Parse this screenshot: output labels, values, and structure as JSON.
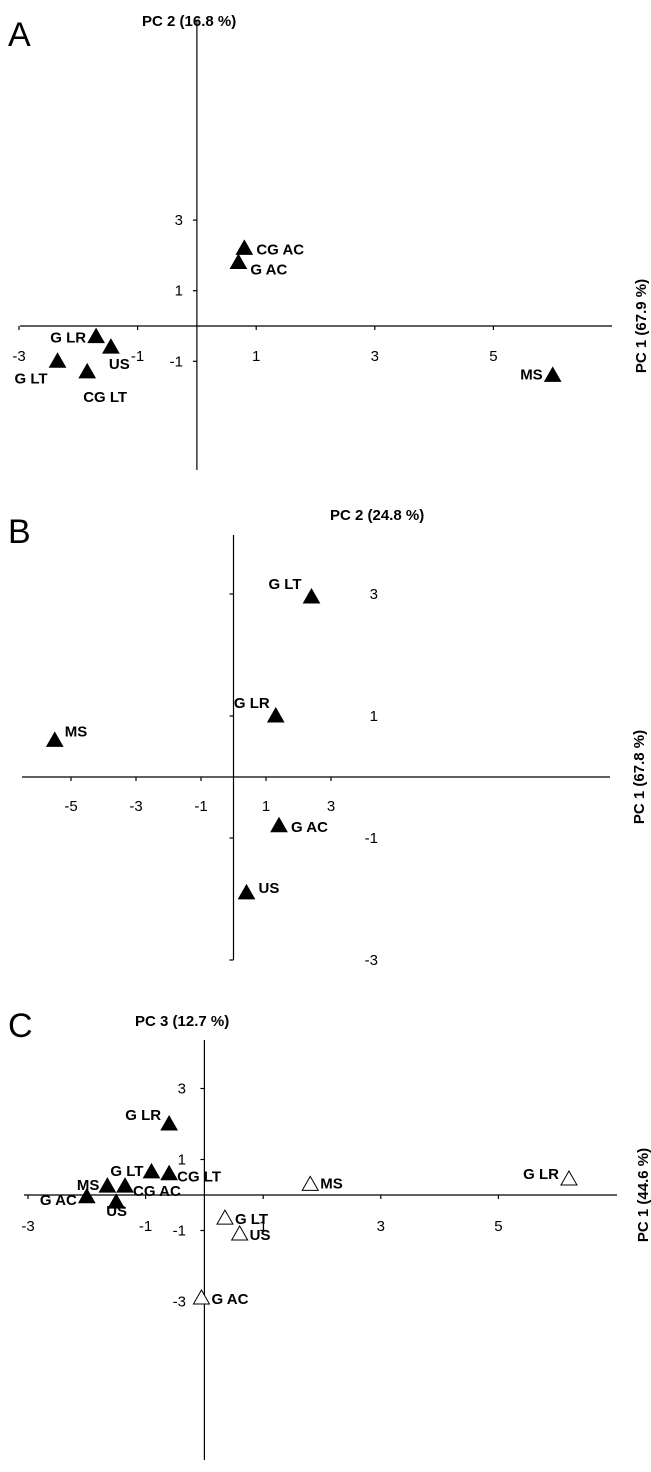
{
  "colors": {
    "filled_marker": "#000000",
    "open_marker": "#ffffff",
    "axis": "#000000"
  },
  "chart_data": [
    {
      "panel": "A",
      "type": "scatter",
      "xlabel": "PC 1 (67.9 %)",
      "ylabel": "PC 2 (16.8 %)",
      "xlim": [
        -3,
        7
      ],
      "ylim": [
        -2,
        4
      ],
      "xticks": [
        -3,
        -1,
        1,
        3,
        5
      ],
      "yticks": [
        -1,
        1,
        3
      ],
      "points": [
        {
          "label": "CG AC",
          "x": 0.8,
          "y": 2.2,
          "filled": true
        },
        {
          "label": "G AC",
          "x": 0.7,
          "y": 1.8,
          "filled": true
        },
        {
          "label": "G LR",
          "x": -1.7,
          "y": -0.3,
          "filled": true
        },
        {
          "label": "US",
          "x": -1.45,
          "y": -0.6,
          "filled": true
        },
        {
          "label": "G LT",
          "x": -2.35,
          "y": -1.0,
          "filled": true
        },
        {
          "label": "CG LT",
          "x": -1.85,
          "y": -1.3,
          "filled": true
        },
        {
          "label": "MS",
          "x": 6.0,
          "y": -1.4,
          "filled": true
        }
      ]
    },
    {
      "panel": "B",
      "type": "scatter",
      "xlabel": "PC 1 (67.8 %)",
      "ylabel": "PC 2 (24.8 %)",
      "xlim": [
        -6,
        3.8
      ],
      "ylim": [
        -3,
        4
      ],
      "xticks": [
        -5,
        -3,
        -1,
        1,
        3
      ],
      "yticks": [
        -3,
        -1,
        1,
        3
      ],
      "points": [
        {
          "label": "G LT",
          "x": 2.4,
          "y": 2.95,
          "filled": true
        },
        {
          "label": "G LR",
          "x": 1.3,
          "y": 1.0,
          "filled": true
        },
        {
          "label": "MS",
          "x": -5.5,
          "y": 0.6,
          "filled": true
        },
        {
          "label": "G AC",
          "x": 1.4,
          "y": -0.8,
          "filled": true
        },
        {
          "label": "US",
          "x": 0.4,
          "y": -1.9,
          "filled": true
        }
      ]
    },
    {
      "panel": "C",
      "type": "scatter",
      "xlabel": "PC 1 (44.6 %)",
      "ylabel": "PC 3 (12.7 %)",
      "xlim": [
        -3,
        7
      ],
      "ylim": [
        -3,
        3
      ],
      "xticks": [
        -3,
        -1,
        1,
        3,
        5
      ],
      "yticks": [
        -3,
        -1,
        1,
        3
      ],
      "points": [
        {
          "label": "G LR",
          "x": -0.6,
          "y": 2.0,
          "filled": true
        },
        {
          "label": "G LT",
          "x": -0.9,
          "y": 0.65,
          "filled": true
        },
        {
          "label": "CG LT",
          "x": -0.6,
          "y": 0.6,
          "filled": true
        },
        {
          "label": "MS",
          "x": -1.65,
          "y": 0.25,
          "filled": true
        },
        {
          "label": "CG AC",
          "x": -1.35,
          "y": 0.25,
          "filled": true
        },
        {
          "label": "G AC",
          "x": -2.0,
          "y": -0.05,
          "filled": true
        },
        {
          "label": "US",
          "x": -1.5,
          "y": -0.2,
          "filled": true
        },
        {
          "label": "MS",
          "x": 1.8,
          "y": 0.3,
          "filled": false
        },
        {
          "label": "G LR",
          "x": 6.2,
          "y": 0.45,
          "filled": false
        },
        {
          "label": "G LT",
          "x": 0.35,
          "y": -0.65,
          "filled": false
        },
        {
          "label": "US",
          "x": 0.6,
          "y": -1.1,
          "filled": false
        },
        {
          "label": "G AC",
          "x": -0.05,
          "y": -2.9,
          "filled": false
        }
      ]
    }
  ],
  "panel_letters": [
    "A",
    "B",
    "C"
  ]
}
